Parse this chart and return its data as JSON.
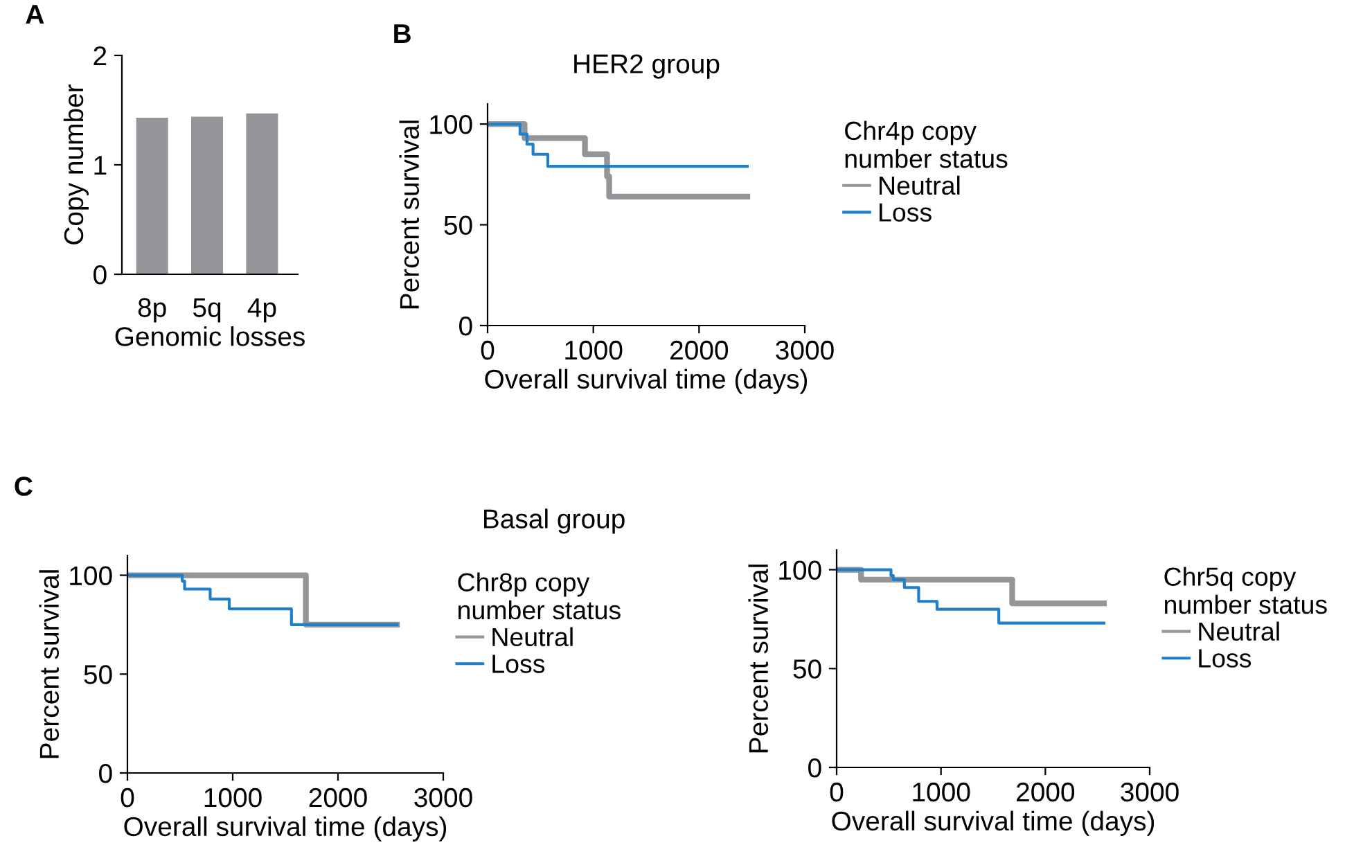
{
  "chart_data": [
    {
      "type": "bar",
      "ylabel": "Copy number",
      "xlabel": "Genomic losses",
      "categories": [
        "8p",
        "5q",
        "4p"
      ],
      "values": [
        1.43,
        1.44,
        1.47
      ],
      "color": "#939598",
      "ylim": [
        0,
        2
      ],
      "yticks": [
        0,
        1,
        2
      ],
      "grid": false,
      "annotations": [
        "A"
      ]
    },
    {
      "type": "step",
      "title": "HER2 group",
      "xlabel": "Overall survival time (days)",
      "ylabel": "Percent survival",
      "legend_title": "Chr4p copy\nnumber status",
      "legend": "right",
      "grid": false,
      "xlim": [
        0,
        3000
      ],
      "xticks": [
        0,
        1000,
        2000,
        3000
      ],
      "ylim": [
        0,
        110
      ],
      "yticks": [
        0,
        50,
        100
      ],
      "annotations": [
        "B"
      ],
      "series": [
        {
          "name": "Neutral",
          "color": "#939598",
          "x": [
            0,
            350,
            921,
            1130,
            1150,
            2456
          ],
          "values": [
            100,
            93,
            85,
            74,
            64,
            64
          ]
        },
        {
          "name": "Loss",
          "color": "#1f7fc8",
          "x": [
            0,
            307,
            373,
            430,
            570,
            2456
          ],
          "values": [
            100,
            95,
            90,
            85,
            79,
            79
          ]
        }
      ]
    },
    {
      "type": "step",
      "title": "Basal group",
      "xlabel": "Overall survival time (days)",
      "ylabel": "Percent survival",
      "legend_title": "Chr8p copy\nnumber status",
      "legend": "right",
      "grid": false,
      "xlim": [
        0,
        3000
      ],
      "xticks": [
        0,
        1000,
        2000,
        3000
      ],
      "ylim": [
        0,
        110
      ],
      "yticks": [
        0,
        50,
        100
      ],
      "annotations": [
        "C"
      ],
      "series": [
        {
          "name": "Neutral",
          "color": "#939598",
          "x": [
            0,
            1695,
            2560
          ],
          "values": [
            100,
            75,
            75
          ]
        },
        {
          "name": "Loss",
          "color": "#1f7fc8",
          "x": [
            0,
            521,
            543,
            786,
            967,
            1558,
            2560
          ],
          "values": [
            100,
            97,
            93,
            88,
            83,
            75,
            75
          ]
        }
      ]
    },
    {
      "type": "step",
      "xlabel": "Overall survival time (days)",
      "ylabel": "Percent survival",
      "legend_title": "Chr5q copy\nnumber status",
      "legend": "right",
      "grid": false,
      "xlim": [
        0,
        3000
      ],
      "xticks": [
        0,
        1000,
        2000,
        3000
      ],
      "ylim": [
        0,
        110
      ],
      "yticks": [
        0,
        50,
        100
      ],
      "series": [
        {
          "name": "Neutral",
          "color": "#939598",
          "x": [
            0,
            234,
            1682,
            2561
          ],
          "values": [
            100,
            95,
            83,
            83
          ]
        },
        {
          "name": "Loss",
          "color": "#1f7fc8",
          "x": [
            0,
            521,
            543,
            649,
            786,
            962,
            1554,
            2561
          ],
          "values": [
            100,
            97,
            95,
            91,
            84,
            80,
            73,
            73
          ]
        }
      ]
    }
  ]
}
